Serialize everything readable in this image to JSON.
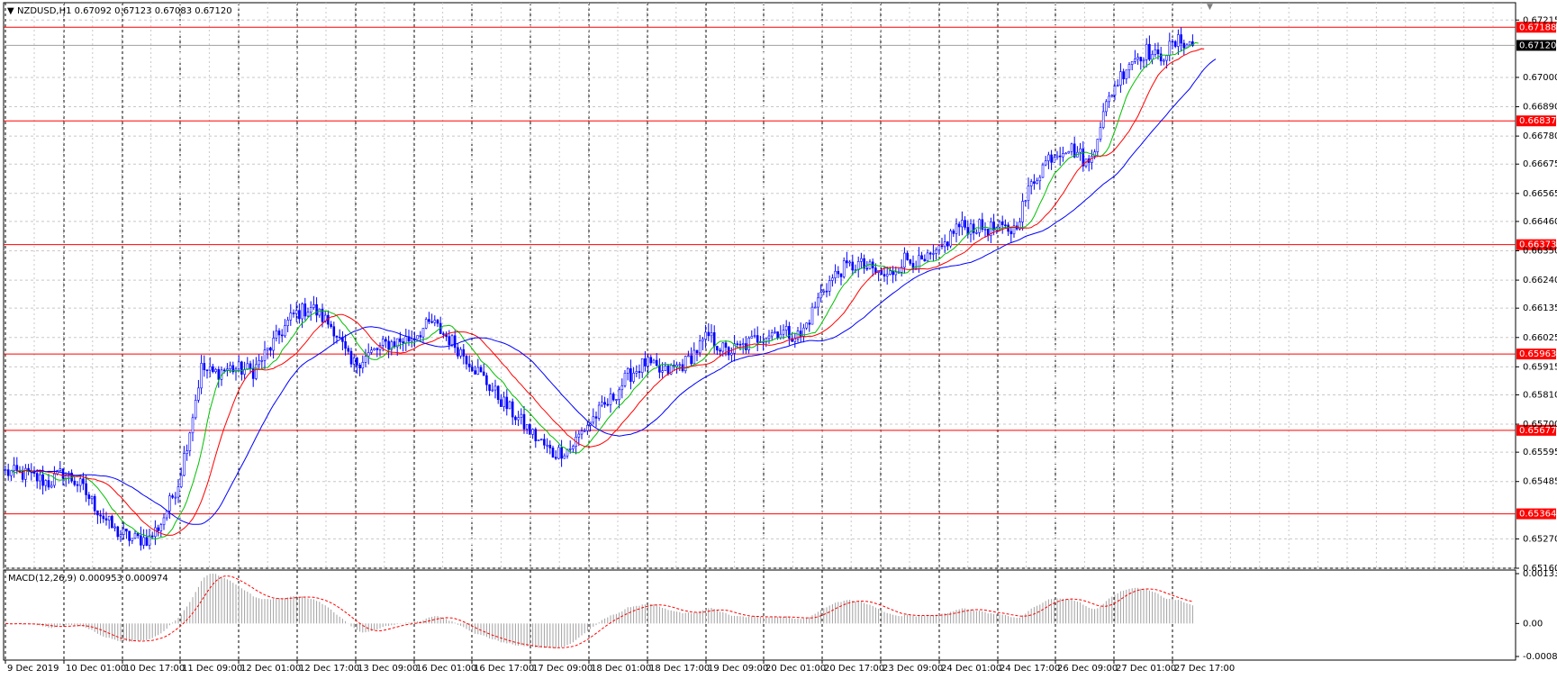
{
  "window": {
    "symbol_header": "NZDUSD,H1  0.67092 0.67123 0.67083 0.67120",
    "indicator_header": "MACD(12,26,9) 0.000953 0.000974"
  },
  "colors": {
    "background": "#ffffff",
    "grid": "#c8c8c8",
    "vgrid_major": "#000000",
    "candles": "#0000ff",
    "ma_fast": "#00c000",
    "ma_mid": "#ff0000",
    "ma_slow": "#0000ff",
    "levels": "#ff0000",
    "macd_hist": "#a0a0a0",
    "macd_signal": "#ff0000",
    "current_price_box": "#000000"
  },
  "chart_data": {
    "type": "candlestick",
    "symbol": "NZDUSD",
    "timeframe": "H1",
    "ohlc_current": {
      "open": 0.67092,
      "high": 0.67123,
      "low": 0.67083,
      "close": 0.6712
    },
    "ylim": [
      0.6516,
      0.6728
    ],
    "y_ticks": [
      "0.67215",
      "0.67000",
      "0.66890",
      "0.66780",
      "0.66675",
      "0.66565",
      "0.66460",
      "0.66350",
      "0.66240",
      "0.66135",
      "0.66025",
      "0.65915",
      "0.65810",
      "0.65700",
      "0.65595",
      "0.65485",
      "0.65270",
      "0.65160"
    ],
    "x_ticks": [
      "9 Dec 2019",
      "10 Dec 01:00",
      "10 Dec 17:00",
      "11 Dec 09:00",
      "12 Dec 01:00",
      "12 Dec 17:00",
      "13 Dec 09:00",
      "16 Dec 01:00",
      "16 Dec 17:00",
      "17 Dec 09:00",
      "18 Dec 01:00",
      "18 Dec 17:00",
      "19 Dec 09:00",
      "20 Dec 01:00",
      "20 Dec 17:00",
      "23 Dec 09:00",
      "24 Dec 01:00",
      "24 Dec 17:00",
      "26 Dec 09:00",
      "27 Dec 01:00",
      "27 Dec 17:00"
    ],
    "levels": [
      "0.67188",
      "0.66837",
      "0.66373",
      "0.65963",
      "0.65677",
      "0.65364"
    ],
    "current_price": "0.67120",
    "close_series_anchors": [
      [
        0,
        0.6552
      ],
      [
        8,
        0.6551
      ],
      [
        15,
        0.6548
      ],
      [
        20,
        0.6552
      ],
      [
        26,
        0.6547
      ],
      [
        32,
        0.6538
      ],
      [
        38,
        0.653
      ],
      [
        44,
        0.6527
      ],
      [
        50,
        0.6527
      ],
      [
        54,
        0.6533
      ],
      [
        60,
        0.6548
      ],
      [
        64,
        0.6568
      ],
      [
        68,
        0.6591
      ],
      [
        72,
        0.6589
      ],
      [
        78,
        0.6591
      ],
      [
        86,
        0.659
      ],
      [
        92,
        0.6599
      ],
      [
        100,
        0.6611
      ],
      [
        106,
        0.6614
      ],
      [
        114,
        0.6606
      ],
      [
        120,
        0.6592
      ],
      [
        126,
        0.6596
      ],
      [
        132,
        0.66
      ],
      [
        140,
        0.6602
      ],
      [
        148,
        0.6608
      ],
      [
        154,
        0.6602
      ],
      [
        160,
        0.6595
      ],
      [
        166,
        0.6587
      ],
      [
        172,
        0.6579
      ],
      [
        178,
        0.6572
      ],
      [
        184,
        0.6565
      ],
      [
        190,
        0.6559
      ],
      [
        196,
        0.6561
      ],
      [
        202,
        0.657
      ],
      [
        210,
        0.6579
      ],
      [
        216,
        0.6588
      ],
      [
        222,
        0.6593
      ],
      [
        228,
        0.6589
      ],
      [
        236,
        0.6593
      ],
      [
        244,
        0.6603
      ],
      [
        250,
        0.6597
      ],
      [
        256,
        0.6599
      ],
      [
        262,
        0.6603
      ],
      [
        268,
        0.6605
      ],
      [
        276,
        0.6603
      ],
      [
        284,
        0.6621
      ],
      [
        290,
        0.6628
      ],
      [
        296,
        0.663
      ],
      [
        300,
        0.6628
      ],
      [
        306,
        0.6625
      ],
      [
        312,
        0.6632
      ],
      [
        318,
        0.663
      ],
      [
        324,
        0.6634
      ],
      [
        330,
        0.6644
      ],
      [
        336,
        0.6644
      ],
      [
        344,
        0.6643
      ],
      [
        350,
        0.6643
      ],
      [
        356,
        0.666
      ],
      [
        362,
        0.667
      ],
      [
        368,
        0.6674
      ],
      [
        372,
        0.6672
      ],
      [
        376,
        0.6667
      ],
      [
        380,
        0.6683
      ],
      [
        384,
        0.6695
      ],
      [
        390,
        0.6706
      ],
      [
        396,
        0.671
      ],
      [
        400,
        0.6707
      ],
      [
        404,
        0.6711
      ],
      [
        408,
        0.6714
      ],
      [
        412,
        0.6712
      ]
    ],
    "macd_ylim": [
      -0.000883,
      0.001333
    ],
    "macd_ticks": [
      "0.001333",
      "0.00",
      "-0.000883"
    ]
  }
}
